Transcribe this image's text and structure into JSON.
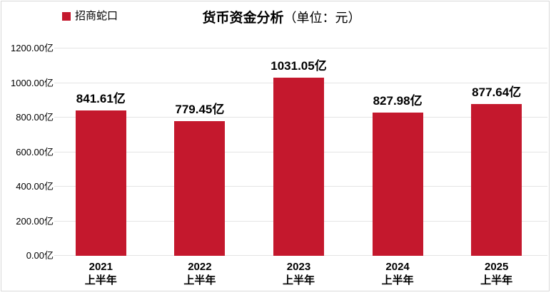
{
  "accent_color": "#C4182D",
  "header": {
    "legend": {
      "label": "招商蛇口",
      "swatch_color": "#C4182D"
    },
    "title": {
      "main": "货币资金分析",
      "unit": "（单位：元）"
    }
  },
  "chart_data": {
    "type": "bar",
    "title": "货币资金分析",
    "title_unit": "（单位：元）",
    "legend": [
      "招商蛇口"
    ],
    "legend_position": "top-left",
    "categories": [
      "2021 上半年",
      "2022 上半年",
      "2023 上半年",
      "2024 上半年",
      "2025 上半年"
    ],
    "x_tick_year_lines": [
      "2021",
      "2022",
      "2023",
      "2024",
      "2025"
    ],
    "x_tick_sub_line": "上半年",
    "series": [
      {
        "name": "招商蛇口",
        "color": "#C4182D",
        "values": [
          841.61,
          779.45,
          1031.05,
          827.98,
          877.64
        ]
      }
    ],
    "value_labels": [
      "841.61亿",
      "779.45亿",
      "1031.05亿",
      "827.98亿",
      "877.64亿"
    ],
    "unit": "亿",
    "xlabel": "",
    "ylabel": "",
    "ylim": [
      0,
      1200
    ],
    "y_tick_step": 200,
    "y_ticks": [
      "0.00亿",
      "200.00亿",
      "400.00亿",
      "600.00亿",
      "800.00亿",
      "1000.00亿",
      "1200.00亿"
    ],
    "grid": true,
    "gridline_color": "#E4E4E4",
    "background": "#FFFFFF"
  }
}
